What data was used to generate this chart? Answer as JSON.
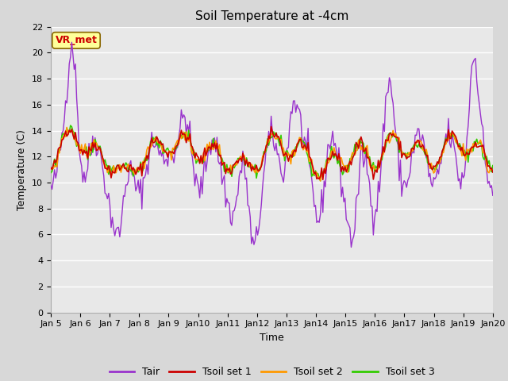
{
  "title": "Soil Temperature at -4cm",
  "xlabel": "Time",
  "ylabel": "Temperature (C)",
  "ylim": [
    0,
    22
  ],
  "yticks": [
    0,
    2,
    4,
    6,
    8,
    10,
    12,
    14,
    16,
    18,
    20,
    22
  ],
  "x_labels": [
    "Jan 5",
    "Jan 6",
    "Jan 7",
    "Jan 8",
    "Jan 9",
    "Jan 10",
    "Jan 11",
    "Jan 12",
    "Jan 13",
    "Jan 14",
    "Jan 15",
    "Jan 16",
    "Jan 17",
    "Jan 18",
    "Jan 19",
    "Jan 20"
  ],
  "annotation_text": "VR_met",
  "annotation_color": "#cc0000",
  "annotation_bg": "#ffff99",
  "line_colors": {
    "Tair": "#9933cc",
    "Tsoil_set1": "#cc0000",
    "Tsoil_set2": "#ff9900",
    "Tsoil_set3": "#33cc00"
  },
  "legend_labels": [
    "Tair",
    "Tsoil set 1",
    "Tsoil set 2",
    "Tsoil set 3"
  ],
  "bg_color": "#d8d8d8",
  "plot_bg_color": "#e8e8e8",
  "grid_color": "#ffffff",
  "title_fontsize": 11,
  "axis_fontsize": 9,
  "tick_fontsize": 8,
  "legend_fontsize": 9
}
